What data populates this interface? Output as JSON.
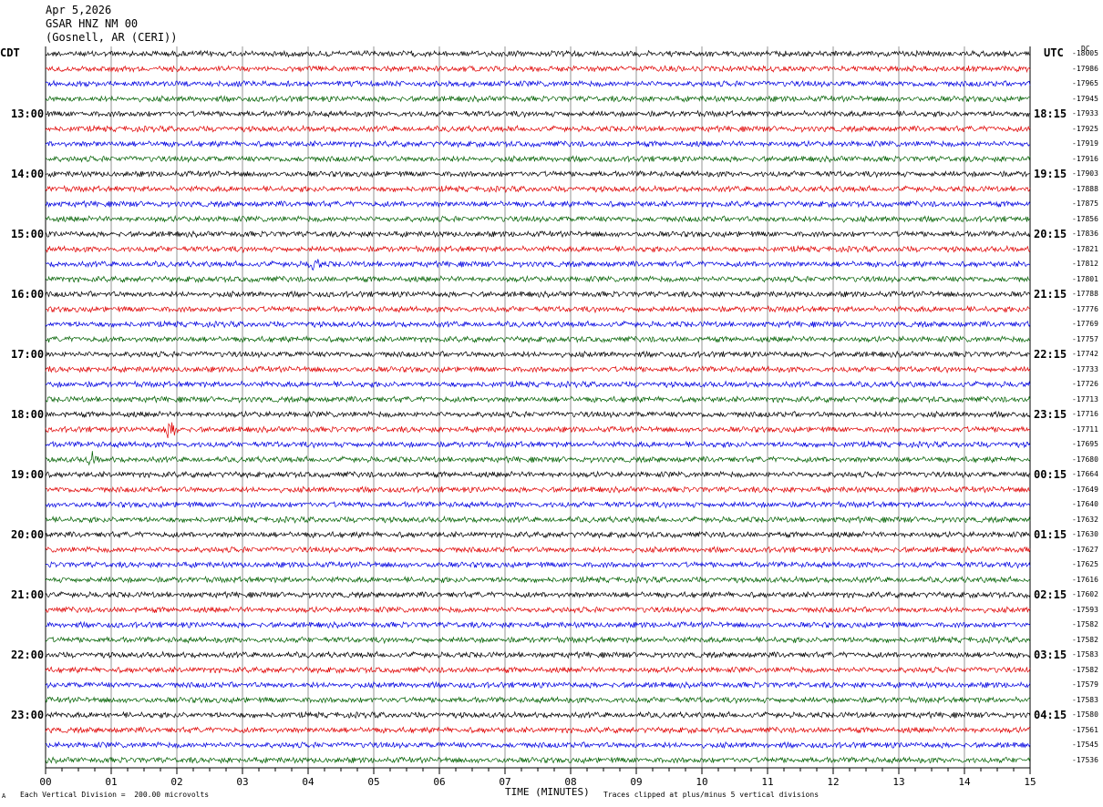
{
  "header": {
    "date": "Apr 5,2026",
    "station": "GSAR HNZ NM 00",
    "location": "(Gosnell, AR (CERI))"
  },
  "left_timezone": "CDT",
  "right_timezone": "UTC",
  "dc_label": "DC",
  "footer": {
    "scale_note": "Each Vertical Division =  200.00 microvolts",
    "clip_note": "Traces clipped at plus/minus 5 vertical divisions",
    "corner_mark": "A"
  },
  "colors": {
    "trace_cycle": [
      "#000000",
      "#e00000",
      "#0000e0",
      "#006000"
    ],
    "grid": "#7a7a7a",
    "frame": "#000000"
  },
  "chart_data": {
    "type": "line",
    "title": "",
    "xlabel": "TIME (MINUTES)",
    "ylabel": "",
    "xlim": [
      0,
      15
    ],
    "x_tick_labels": [
      "00",
      "01",
      "02",
      "03",
      "04",
      "05",
      "06",
      "07",
      "08",
      "09",
      "10",
      "11",
      "12",
      "13",
      "14",
      "15"
    ],
    "rows_per_hour": 4,
    "minutes_per_row": 15,
    "left_hour_labels": [
      "13:00",
      "14:00",
      "15:00",
      "16:00",
      "17:00",
      "18:00",
      "19:00",
      "20:00",
      "21:00",
      "22:00",
      "23:00"
    ],
    "right_hour_labels": [
      "18:15",
      "19:15",
      "20:15",
      "21:15",
      "22:15",
      "23:15",
      "00:15",
      "01:15",
      "02:15",
      "03:15",
      "04:15"
    ],
    "trace_offsets": [
      "-18005",
      "-17986",
      "-17965",
      "-17945",
      "-17933",
      "-17925",
      "-17919",
      "-17916",
      "-17903",
      "-17888",
      "-17875",
      "-17856",
      "-17836",
      "-17821",
      "-17812",
      "-17801",
      "-17788",
      "-17776",
      "-17769",
      "-17757",
      "-17742",
      "-17733",
      "-17726",
      "-17713",
      "-17716",
      "-17711",
      "-17695",
      "-17680",
      "-17664",
      "-17649",
      "-17640",
      "-17632",
      "-17630",
      "-17627",
      "-17625",
      "-17616",
      "-17602",
      "-17593",
      "-17582",
      "-17582",
      "-17583",
      "-17582",
      "-17579",
      "-17583",
      "-17580",
      "-17561",
      "-17545",
      "-17536"
    ],
    "events": [
      {
        "row": 14,
        "minute": 4.1,
        "amplitude": 2.2
      },
      {
        "row": 25,
        "minute": 1.95,
        "amplitude": 1.6
      },
      {
        "row": 25,
        "minute": 1.85,
        "amplitude": 1.2
      },
      {
        "row": 27,
        "minute": 0.7,
        "amplitude": 2.0
      }
    ]
  }
}
